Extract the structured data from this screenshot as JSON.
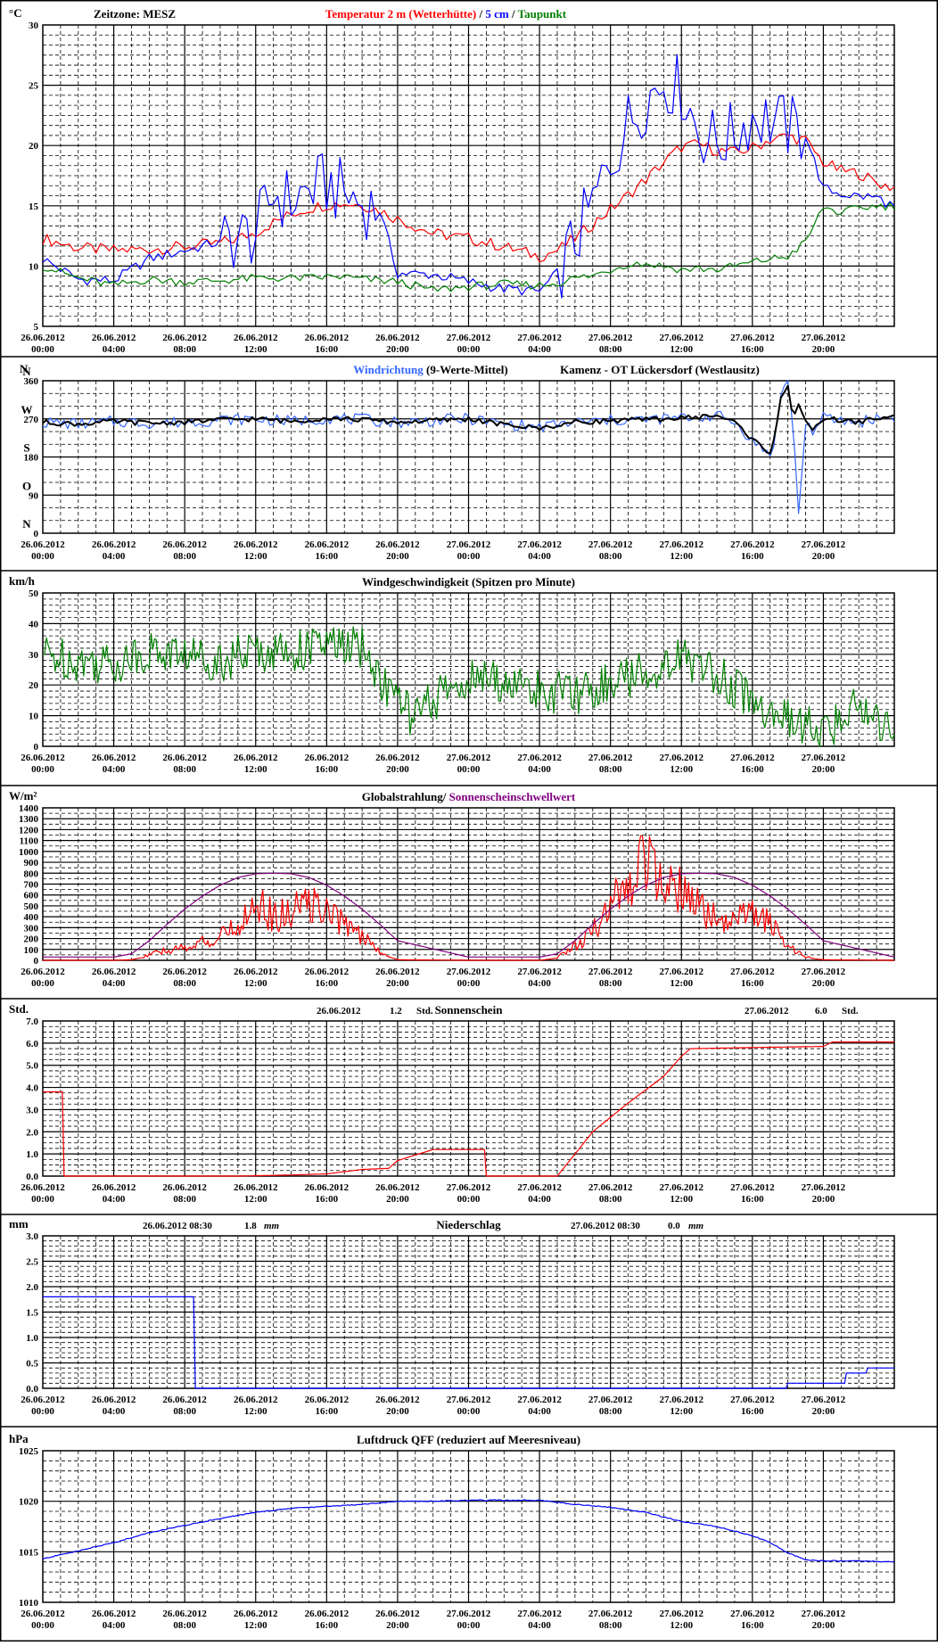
{
  "x_ticks": [
    {
      "date": "26.06.2012",
      "time": "00:00"
    },
    {
      "date": "26.06.2012",
      "time": "04:00"
    },
    {
      "date": "26.06.2012",
      "time": "08:00"
    },
    {
      "date": "26.06.2012",
      "time": "12:00"
    },
    {
      "date": "26.06.2012",
      "time": "16:00"
    },
    {
      "date": "26.06.2012",
      "time": "20:00"
    },
    {
      "date": "27.06.2012",
      "time": "00:00"
    },
    {
      "date": "27.06.2012",
      "time": "04:00"
    },
    {
      "date": "27.06.2012",
      "time": "08:00"
    },
    {
      "date": "27.06.2012",
      "time": "12:00"
    },
    {
      "date": "27.06.2012",
      "time": "16:00"
    },
    {
      "date": "27.06.2012",
      "time": "20:00"
    }
  ],
  "chart_data": [
    {
      "type": "line",
      "unit": "°C",
      "timezone_label": "Zeitzone: MESZ",
      "title_parts": [
        {
          "text": "Temperatur 2 m (Wetterhütte)",
          "color": "#ff0000"
        },
        {
          "text": "  /  ",
          "color": "#000000"
        },
        {
          "text": "5 cm",
          "color": "#0000ff"
        },
        {
          "text": " / ",
          "color": "#000000"
        },
        {
          "text": "Taupunkt",
          "color": "#008000"
        }
      ],
      "ylim": [
        5,
        30
      ],
      "y_ticks": [
        "5",
        "10",
        "15",
        "20",
        "25",
        "30"
      ],
      "x": [
        0,
        2,
        4,
        6,
        8,
        10,
        11,
        12,
        13,
        14,
        15,
        16,
        17,
        18,
        19,
        20,
        22,
        24,
        26,
        28,
        29,
        30,
        31,
        32,
        33,
        34,
        35,
        36,
        37,
        38,
        39,
        40,
        41,
        42,
        43,
        44,
        45,
        46,
        47,
        48
      ],
      "series": [
        {
          "name": "Temperatur 2 m (Wetterhütte)",
          "color": "#ff0000",
          "values": [
            12.3,
            11.5,
            11.3,
            11.4,
            11.6,
            11.9,
            12.3,
            12.8,
            13.6,
            14.3,
            14.8,
            15.1,
            15.2,
            15.1,
            14.6,
            13.9,
            12.7,
            12.3,
            11.6,
            10.8,
            11.3,
            12.3,
            13.5,
            14.7,
            15.9,
            17.2,
            18.6,
            19.9,
            20.1,
            19.6,
            19.4,
            19.8,
            20.5,
            20.8,
            20.4,
            18.6,
            17.9,
            17.7,
            16.9,
            16.5
          ]
        },
        {
          "name": "5 cm",
          "color": "#0000ff",
          "values": [
            10.6,
            8.9,
            8.8,
            10.6,
            11.3,
            12.0,
            12.4,
            12.7,
            16.0,
            15.4,
            16.3,
            16.8,
            16.0,
            15.2,
            14.6,
            9.4,
            9.3,
            8.7,
            8.1,
            7.9,
            9.4,
            12.1,
            15.1,
            18.7,
            21.9,
            23.9,
            25.4,
            24.7,
            21.1,
            20.3,
            21.0,
            22.5,
            22.1,
            21.5,
            20.9,
            16.4,
            16.0,
            15.8,
            15.7,
            14.9
          ]
        },
        {
          "name": "Taupunkt",
          "color": "#008000",
          "values": [
            10.0,
            9.0,
            8.4,
            8.9,
            8.7,
            8.8,
            8.9,
            9.0,
            9.0,
            9.0,
            9.0,
            9.1,
            9.1,
            8.9,
            8.8,
            8.7,
            8.0,
            8.3,
            8.5,
            8.4,
            8.6,
            9.0,
            9.2,
            9.7,
            10.2,
            10.2,
            10.0,
            9.7,
            9.8,
            9.7,
            10.0,
            10.3,
            10.6,
            10.8,
            12.0,
            14.9,
            14.4,
            14.8,
            15.0,
            15.0
          ]
        }
      ]
    },
    {
      "type": "line",
      "unit": "N",
      "title_parts": [
        {
          "text": "Windrichtung",
          "color": "#3366ff"
        },
        {
          "text": " (9-Werte-Mittel)",
          "color": "#000000"
        }
      ],
      "location": "Kamenz - OT Lückersdorf (Westlausitz)",
      "ylim": [
        0,
        360
      ],
      "y_ticks": [
        "0",
        "90",
        "180",
        "270",
        "360"
      ],
      "compass": [
        {
          "label": "N",
          "value": 360
        },
        {
          "label": "W",
          "value": 270
        },
        {
          "label": "S",
          "value": 180
        },
        {
          "label": "O",
          "value": 90
        },
        {
          "label": "N",
          "value": 0
        }
      ],
      "x": [
        0,
        2,
        4,
        6,
        8,
        10,
        12,
        14,
        16,
        18,
        20,
        22,
        24,
        26,
        28,
        30,
        32,
        34,
        36,
        38,
        39,
        40,
        40.5,
        41,
        41.3,
        41.6,
        42,
        42.3,
        42.6,
        43,
        43.5,
        44,
        45,
        46,
        47,
        48
      ],
      "series": [
        {
          "name": "Windrichtung",
          "color": "#3366ff",
          "values": [
            262,
            258,
            264,
            260,
            262,
            268,
            270,
            264,
            272,
            268,
            262,
            266,
            270,
            258,
            250,
            262,
            266,
            268,
            272,
            278,
            262,
            220,
            200,
            185,
            230,
            330,
            355,
            260,
            40,
            260,
            240,
            272,
            266,
            262,
            272,
            275
          ]
        },
        {
          "name": "9-Werte-Mittel",
          "color": "#000000",
          "values": [
            262,
            258,
            264,
            260,
            262,
            268,
            270,
            264,
            272,
            268,
            262,
            266,
            270,
            256,
            248,
            262,
            266,
            268,
            272,
            278,
            262,
            222,
            205,
            190,
            240,
            320,
            350,
            265,
            300,
            262,
            245,
            272,
            266,
            262,
            272,
            275
          ]
        }
      ]
    },
    {
      "type": "line",
      "unit": "km/h",
      "title": "Windgeschwindigkeit (Spitzen pro Minute)",
      "ylim": [
        0,
        50
      ],
      "y_ticks": [
        "0",
        "10",
        "20",
        "30",
        "40",
        "50"
      ],
      "x": [
        0,
        2,
        4,
        6,
        8,
        10,
        12,
        14,
        16,
        18,
        19,
        20,
        21,
        22,
        24,
        26,
        28,
        30,
        32,
        34,
        35,
        36,
        37,
        38,
        39,
        40,
        41,
        42,
        43,
        44,
        45,
        46,
        47,
        48
      ],
      "series": [
        {
          "name": "Windgeschwindigkeit",
          "color": "#008000",
          "values": [
            30,
            28,
            27,
            31,
            30,
            28,
            31,
            31,
            33,
            32,
            22,
            15,
            9,
            15,
            22,
            21,
            18,
            17,
            21,
            24,
            27,
            29,
            26,
            24,
            19,
            15,
            11,
            8,
            7,
            4,
            8,
            16,
            8,
            8
          ]
        }
      ]
    },
    {
      "type": "line",
      "unit": "W/m²",
      "title_parts": [
        {
          "text": "Globalstrahlung/",
          "color": "#000000"
        },
        {
          "text": " Sonnenscheinschwellwert",
          "color": "#800080"
        }
      ],
      "ylim": [
        0,
        1400
      ],
      "y_ticks": [
        "0",
        "100",
        "200",
        "300",
        "400",
        "500",
        "600",
        "700",
        "800",
        "900",
        "1000",
        "1100",
        "1200",
        "1300",
        "1400"
      ],
      "x": [
        0,
        4,
        5,
        6,
        7,
        8,
        9,
        10,
        11,
        12,
        13,
        14,
        15,
        16,
        17,
        18,
        19,
        20,
        24,
        28,
        29,
        30,
        31,
        32,
        33,
        34,
        35,
        36,
        37,
        38,
        39,
        40,
        41,
        42,
        43,
        44,
        48
      ],
      "series": [
        {
          "name": "Globalstrahlung",
          "color": "#ff0000",
          "values": [
            0,
            0,
            5,
            40,
            80,
            100,
            140,
            180,
            260,
            480,
            330,
            360,
            460,
            360,
            300,
            180,
            70,
            5,
            0,
            0,
            20,
            110,
            220,
            400,
            620,
            820,
            720,
            520,
            400,
            310,
            300,
            350,
            300,
            110,
            25,
            5,
            0
          ]
        },
        {
          "name": "Sonnenscheinschwellwert",
          "color": "#800080",
          "values": [
            30,
            30,
            60,
            180,
            330,
            470,
            590,
            690,
            760,
            795,
            800,
            795,
            760,
            690,
            590,
            470,
            330,
            180,
            30,
            30,
            60,
            180,
            330,
            470,
            590,
            690,
            760,
            795,
            800,
            795,
            760,
            690,
            590,
            470,
            330,
            180,
            30
          ]
        }
      ]
    },
    {
      "type": "line",
      "unit": "Std.",
      "title": "Sonnenschein",
      "summaries": [
        {
          "date": "26.06.2012",
          "value": "1.2",
          "unit": "Std."
        },
        {
          "date": "27.06.2012",
          "value": "6.0",
          "unit": "Std."
        }
      ],
      "ylim": [
        0,
        7
      ],
      "y_ticks": [
        "0.0",
        "1.0",
        "2.0",
        "3.0",
        "4.0",
        "5.0",
        "6.0",
        "7.0"
      ],
      "x": [
        0,
        1.1,
        1.1,
        11,
        14,
        16,
        18,
        19.5,
        20,
        22,
        24,
        25,
        25,
        29,
        29.5,
        31,
        33,
        35,
        36,
        36.5,
        40,
        44,
        44.5,
        48
      ],
      "series": [
        {
          "name": "Sonnenschein",
          "color": "#ff0000",
          "values": [
            3.8,
            3.8,
            0,
            0,
            0.05,
            0.1,
            0.3,
            0.35,
            0.7,
            1.2,
            1.2,
            1.2,
            0,
            0,
            0.5,
            2.0,
            3.3,
            4.5,
            5.4,
            5.75,
            5.8,
            5.85,
            6.05,
            6.05
          ]
        }
      ]
    },
    {
      "type": "line",
      "unit": "mm",
      "title": "Niederschlag",
      "summaries": [
        {
          "date": "26.06.2012 08:30",
          "value": "1.8",
          "unit": "mm"
        },
        {
          "date": "27.06.2012 08:30",
          "value": "0.0",
          "unit": "mm"
        }
      ],
      "ylim": [
        0,
        3
      ],
      "y_ticks": [
        "0.0",
        "0.5",
        "1.0",
        "1.5",
        "2.0",
        "2.5",
        "3.0"
      ],
      "x": [
        0,
        8.5,
        8.5,
        42,
        42,
        45.3,
        45.3,
        46.5,
        46.5,
        48
      ],
      "series": [
        {
          "name": "Niederschlag",
          "color": "#0000ff",
          "values": [
            1.8,
            1.8,
            0,
            0,
            0.1,
            0.1,
            0.3,
            0.3,
            0.4,
            0.4
          ]
        }
      ]
    },
    {
      "type": "line",
      "unit": "hPa",
      "title": "Luftdruck QFF (reduziert auf Meeresniveau)",
      "ylim": [
        1010,
        1025
      ],
      "y_ticks": [
        "1010",
        "1015",
        "1020",
        "1025"
      ],
      "x": [
        0,
        2,
        4,
        6,
        8,
        10,
        12,
        14,
        16,
        18,
        20,
        22,
        24,
        26,
        28,
        30,
        32,
        34,
        36,
        38,
        40,
        41,
        42,
        43,
        44,
        46,
        48
      ],
      "series": [
        {
          "name": "Luftdruck QFF",
          "color": "#0000ff",
          "values": [
            1014.3,
            1015.1,
            1015.9,
            1016.9,
            1017.6,
            1018.3,
            1018.9,
            1019.3,
            1019.5,
            1019.7,
            1020.0,
            1020.0,
            1020.1,
            1020.1,
            1020.1,
            1019.7,
            1019.4,
            1018.9,
            1018.0,
            1017.5,
            1016.6,
            1015.9,
            1014.9,
            1014.2,
            1014.1,
            1014.1,
            1014.0
          ]
        }
      ]
    }
  ]
}
